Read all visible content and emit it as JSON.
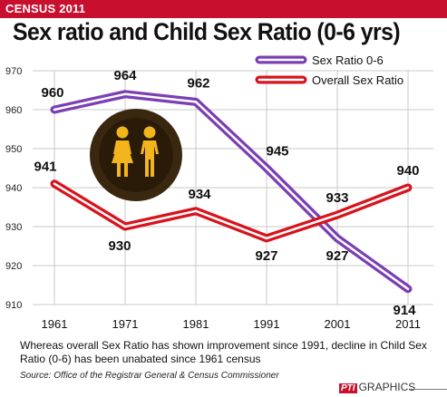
{
  "header": {
    "kicker": "CENSUS 2011",
    "title": "Sex ratio and Child Sex Ratio (0-6 yrs)"
  },
  "chart_data": {
    "type": "line",
    "categories": [
      "1961",
      "1971",
      "1981",
      "1991",
      "2001",
      "2011"
    ],
    "ylim": [
      910,
      970
    ],
    "yticks": [
      "970",
      "960",
      "950",
      "940",
      "930",
      "920",
      "910"
    ],
    "grid": true,
    "legend_position": "top-right",
    "series": [
      {
        "name": "Sex Ratio 0-6",
        "color": "#7b3fb5",
        "values": [
          960,
          964,
          962,
          945,
          927,
          914
        ],
        "labels": [
          "960",
          "964",
          "962",
          "945",
          "927",
          "914"
        ]
      },
      {
        "name": "Overall Sex Ratio",
        "color": "#d7141e",
        "values": [
          941,
          930,
          934,
          927,
          933,
          940
        ],
        "labels": [
          "941",
          "930",
          "934",
          "927",
          "933",
          "940"
        ]
      }
    ]
  },
  "footer": {
    "caption": "Whereas overall Sex Ratio has shown improvement since 1991, decline in Child Sex Ratio (0-6) has been unabated since 1961 census",
    "source": "Source: Office of the Registrar General & Census Commissioner",
    "credit_mark": "PTI",
    "credit_text": "GRAPHICS"
  },
  "icons": {
    "illustration": "woman-man-icon"
  },
  "colors": {
    "banner": "#c8102e",
    "grid": "#c8c8c8",
    "badge_bg": "#3a2710",
    "figures": "#f3b51d"
  }
}
